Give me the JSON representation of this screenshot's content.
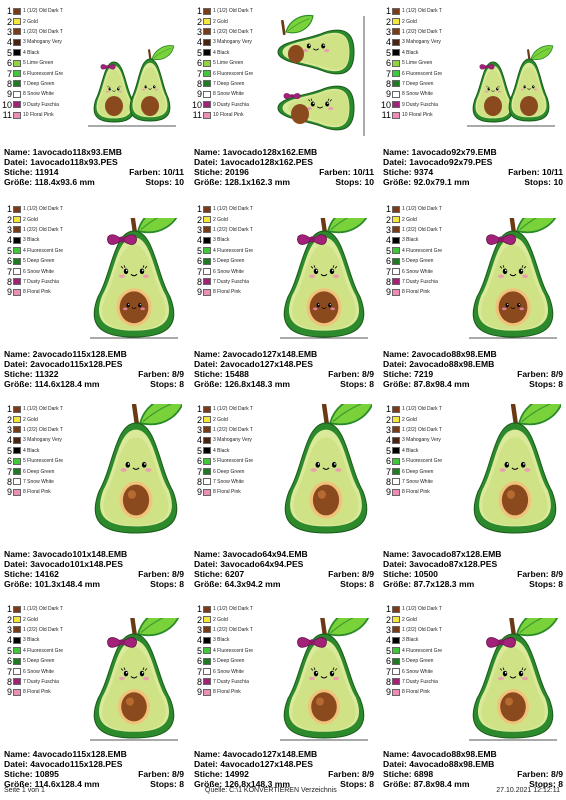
{
  "palettes": {
    "p11": [
      {
        "n": "1",
        "name": "1 (1/2) Old Dark T",
        "color": "#7a3b16"
      },
      {
        "n": "2",
        "name": "2 Gold",
        "color": "#f4e63a"
      },
      {
        "n": "3",
        "name": "1 (2/2) Old Dark T",
        "color": "#7a3b16"
      },
      {
        "n": "4",
        "name": "3 Mahogany Very",
        "color": "#4a2410"
      },
      {
        "n": "5",
        "name": "4 Black",
        "color": "#000000"
      },
      {
        "n": "6",
        "name": "5 Lime Green",
        "color": "#8ed43c"
      },
      {
        "n": "7",
        "name": "6 Fluorescent Gre",
        "color": "#3ec83a"
      },
      {
        "n": "8",
        "name": "7 Deep Green",
        "color": "#1f7a22"
      },
      {
        "n": "9",
        "name": "8 Snow White",
        "color": "#ffffff"
      },
      {
        "n": "10",
        "name": "9 Dusty Fuschia",
        "color": "#a2227a"
      },
      {
        "n": "11",
        "name": "10 Floral Pink",
        "color": "#f08cb8"
      }
    ],
    "pA": [
      {
        "n": "1",
        "name": "1 (1/2) Old Dark T",
        "color": "#7a3b16"
      },
      {
        "n": "2",
        "name": "2 Gold",
        "color": "#f4e63a"
      },
      {
        "n": "3",
        "name": "1 (2/2) Old Dark T",
        "color": "#7a3b16"
      },
      {
        "n": "4",
        "name": "3 Black",
        "color": "#000000"
      },
      {
        "n": "5",
        "name": "4 Fluorescent Gre",
        "color": "#3ec83a"
      },
      {
        "n": "6",
        "name": "5 Deep Green",
        "color": "#1f7a22"
      },
      {
        "n": "7",
        "name": "6 Snow White",
        "color": "#ffffff"
      },
      {
        "n": "8",
        "name": "7 Dusty Fuschia",
        "color": "#a2227a"
      },
      {
        "n": "9",
        "name": "8 Floral Pink",
        "color": "#f08cb8"
      }
    ],
    "pB": [
      {
        "n": "1",
        "name": "1 (1/2) Old Dark T",
        "color": "#7a3b16"
      },
      {
        "n": "2",
        "name": "2 Gold",
        "color": "#f4e63a"
      },
      {
        "n": "3",
        "name": "1 (2/2) Old Dark T",
        "color": "#7a3b16"
      },
      {
        "n": "4",
        "name": "3 Mahogany Very",
        "color": "#4a2410"
      },
      {
        "n": "5",
        "name": "4 Black",
        "color": "#000000"
      },
      {
        "n": "6",
        "name": "5 Fluorescent Gre",
        "color": "#3ec83a"
      },
      {
        "n": "7",
        "name": "6 Deep Green",
        "color": "#1f7a22"
      },
      {
        "n": "8",
        "name": "7 Snow White",
        "color": "#ffffff"
      },
      {
        "n": "9",
        "name": "8 Floral Pink",
        "color": "#f08cb8"
      }
    ]
  },
  "labels": {
    "name": "Name:",
    "file": "Datei:",
    "stitches": "Stiche:",
    "size": "Größe:",
    "colors": "Farben:",
    "stops": "Stops:"
  },
  "designs": [
    {
      "name": "1avocado118x93.EMB",
      "file": "1avocado118x93.PES",
      "stitches": "11914",
      "colors": "10/11",
      "size": "118.4x93.6 mm",
      "stops": "10",
      "palette": "p11",
      "art": "double"
    },
    {
      "name": "1avocado128x162.EMB",
      "file": "1avocado128x162.PES",
      "stitches": "20196",
      "colors": "10/11",
      "size": "128.1x162.3 mm",
      "stops": "10",
      "palette": "p11",
      "art": "stacked"
    },
    {
      "name": "1avocado92x79.EMB",
      "file": "1avocado92x79.PES",
      "stitches": "9374",
      "colors": "10/11",
      "size": "92.0x79.1 mm",
      "stops": "10",
      "palette": "p11",
      "art": "double"
    },
    {
      "name": "2avocado115x128.EMB",
      "file": "2avocado115x128.PES",
      "stitches": "11322",
      "colors": "8/9",
      "size": "114.6x128.4 mm",
      "stops": "8",
      "palette": "pA",
      "art": "bowface"
    },
    {
      "name": "2avocado127x148.EMB",
      "file": "2avocado127x148.PES",
      "stitches": "15488",
      "colors": "8/9",
      "size": "126.8x148.3 mm",
      "stops": "8",
      "palette": "pA",
      "art": "bowface"
    },
    {
      "name": "2avocado88x98.EMB",
      "file": "2avocado88x98.EMB",
      "stitches": "7219",
      "colors": "8/9",
      "size": "87.8x98.4 mm",
      "stops": "8",
      "palette": "pA",
      "art": "bowface"
    },
    {
      "name": "3avocado101x148.EMB",
      "file": "3avocado101x148.PES",
      "stitches": "14162",
      "colors": "8/9",
      "size": "101.3x148.4 mm",
      "stops": "8",
      "palette": "pB",
      "art": "seed"
    },
    {
      "name": "3avocado64x94.EMB",
      "file": "3avocado64x94.PES",
      "stitches": "6207",
      "colors": "8/9",
      "size": "64.3x94.2 mm",
      "stops": "8",
      "palette": "pB",
      "art": "seed"
    },
    {
      "name": "3avocado87x128.EMB",
      "file": "3avocado87x128.PES",
      "stitches": "10500",
      "colors": "8/9",
      "size": "87.7x128.3 mm",
      "stops": "8",
      "palette": "pB",
      "art": "seed"
    },
    {
      "name": "4avocado115x128.EMB",
      "file": "4avocado115x128.PES",
      "stitches": "10895",
      "colors": "8/9",
      "size": "114.6x128.4 mm",
      "stops": "8",
      "palette": "pA",
      "art": "bowseed"
    },
    {
      "name": "4avocado127x148.EMB",
      "file": "4avocado127x148.PES",
      "stitches": "14992",
      "colors": "8/9",
      "size": "126.8x148.3 mm",
      "stops": "8",
      "palette": "pA",
      "art": "bowseed"
    },
    {
      "name": "4avocado88x98.EMB",
      "file": "4avocado88x98.EMB",
      "stitches": "6898",
      "colors": "8/9",
      "size": "87.8x98.4 mm",
      "stops": "8",
      "palette": "pA",
      "art": "bowseed"
    }
  ],
  "footer": {
    "page": "Seite 1 von 1",
    "source": "Quelle: C:\\1 KONVERTIEREN Verzeichnis",
    "date": "27.10.2021 12:12:11"
  }
}
